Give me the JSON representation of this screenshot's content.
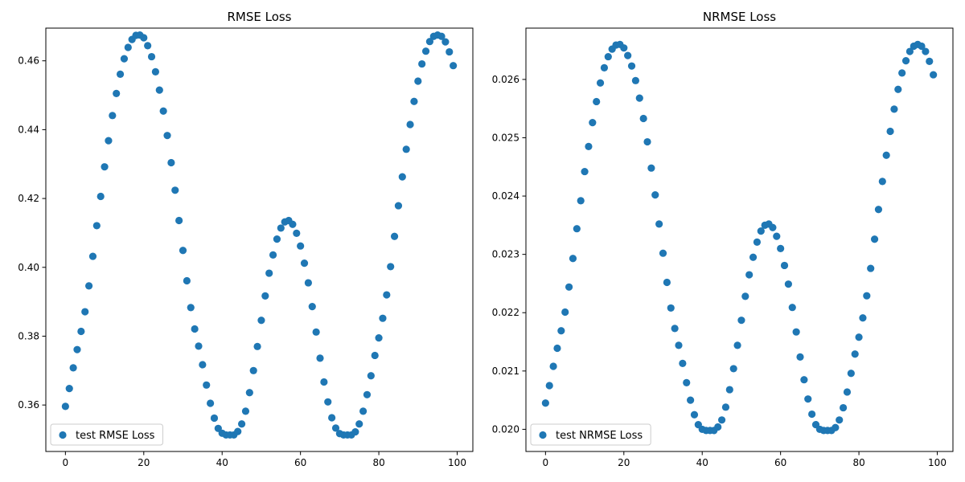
{
  "chart_data": [
    {
      "type": "scatter",
      "title": "RMSE Loss",
      "xlabel": "",
      "ylabel": "",
      "xlim": [
        -5,
        104
      ],
      "ylim": [
        0.3465,
        0.4695
      ],
      "xticks": [
        0,
        20,
        40,
        60,
        80,
        100
      ],
      "xtick_labels": [
        "0",
        "20",
        "40",
        "60",
        "80",
        "100"
      ],
      "yticks": [
        0.36,
        0.38,
        0.4,
        0.42,
        0.44,
        0.46
      ],
      "ytick_labels": [
        "0.36",
        "0.38",
        "0.40",
        "0.42",
        "0.44",
        "0.46"
      ],
      "grid": false,
      "legend_position": "lower-left",
      "color": "#1f77b4",
      "series": [
        {
          "name": "test RMSE Loss",
          "x": [
            0,
            1,
            2,
            3,
            4,
            5,
            6,
            7,
            8,
            9,
            10,
            11,
            12,
            13,
            14,
            15,
            16,
            17,
            18,
            19,
            20,
            21,
            22,
            23,
            24,
            25,
            26,
            27,
            28,
            29,
            30,
            31,
            32,
            33,
            34,
            35,
            36,
            37,
            38,
            39,
            40,
            41,
            42,
            43,
            44,
            45,
            46,
            47,
            48,
            49,
            50,
            51,
            52,
            53,
            54,
            55,
            56,
            57,
            58,
            59,
            60,
            61,
            62,
            63,
            64,
            65,
            66,
            67,
            68,
            69,
            70,
            71,
            72,
            73,
            74,
            75,
            76,
            77,
            78,
            79,
            80,
            81,
            82,
            83,
            84,
            85,
            86,
            87,
            88,
            89,
            90,
            91,
            92,
            93,
            94,
            95,
            96,
            97,
            98,
            99
          ],
          "values": [
            0.3596,
            0.3648,
            0.3708,
            0.3761,
            0.3814,
            0.3871,
            0.3946,
            0.4032,
            0.4121,
            0.4206,
            0.4292,
            0.4368,
            0.4441,
            0.4505,
            0.4561,
            0.4606,
            0.4639,
            0.4662,
            0.4674,
            0.4675,
            0.4667,
            0.4644,
            0.4612,
            0.4568,
            0.4515,
            0.4454,
            0.4383,
            0.4304,
            0.4224,
            0.4136,
            0.4049,
            0.3961,
            0.3883,
            0.3821,
            0.3771,
            0.3717,
            0.3658,
            0.3605,
            0.3562,
            0.3532,
            0.3518,
            0.3513,
            0.3513,
            0.3513,
            0.3523,
            0.3545,
            0.3582,
            0.3636,
            0.37,
            0.377,
            0.3846,
            0.3917,
            0.3983,
            0.4036,
            0.4082,
            0.4114,
            0.4132,
            0.4136,
            0.4125,
            0.4099,
            0.4062,
            0.4012,
            0.3955,
            0.3886,
            0.3812,
            0.3736,
            0.3667,
            0.3609,
            0.3563,
            0.3533,
            0.3517,
            0.3513,
            0.3513,
            0.3513,
            0.3522,
            0.3545,
            0.3582,
            0.363,
            0.3685,
            0.3744,
            0.3795,
            0.3852,
            0.392,
            0.4002,
            0.409,
            0.4179,
            0.4263,
            0.4343,
            0.4415,
            0.4482,
            0.4541,
            0.4591,
            0.4628,
            0.4656,
            0.4671,
            0.4675,
            0.4671,
            0.4655,
            0.4626,
            0.4586
          ]
        }
      ]
    },
    {
      "type": "scatter",
      "title": "NRMSE Loss",
      "xlabel": "",
      "ylabel": "",
      "xlim": [
        -5,
        104
      ],
      "ylim": [
        0.01962,
        0.02688
      ],
      "xticks": [
        0,
        20,
        40,
        60,
        80,
        100
      ],
      "xtick_labels": [
        "0",
        "20",
        "40",
        "60",
        "80",
        "100"
      ],
      "yticks": [
        0.02,
        0.021,
        0.022,
        0.023,
        0.024,
        0.025,
        0.026
      ],
      "ytick_labels": [
        "0.020",
        "0.021",
        "0.022",
        "0.023",
        "0.024",
        "0.025",
        "0.026"
      ],
      "grid": false,
      "legend_position": "lower-left",
      "color": "#1f77b4",
      "series": [
        {
          "name": "test NRMSE Loss",
          "x": [
            0,
            1,
            2,
            3,
            4,
            5,
            6,
            7,
            8,
            9,
            10,
            11,
            12,
            13,
            14,
            15,
            16,
            17,
            18,
            19,
            20,
            21,
            22,
            23,
            24,
            25,
            26,
            27,
            28,
            29,
            30,
            31,
            32,
            33,
            34,
            35,
            36,
            37,
            38,
            39,
            40,
            41,
            42,
            43,
            44,
            45,
            46,
            47,
            48,
            49,
            50,
            51,
            52,
            53,
            54,
            55,
            56,
            57,
            58,
            59,
            60,
            61,
            62,
            63,
            64,
            65,
            66,
            67,
            68,
            69,
            70,
            71,
            72,
            73,
            74,
            75,
            76,
            77,
            78,
            79,
            80,
            81,
            82,
            83,
            84,
            85,
            86,
            87,
            88,
            89,
            90,
            91,
            92,
            93,
            94,
            95,
            96,
            97,
            98,
            99
          ],
          "values": [
            0.02045,
            0.02075,
            0.02108,
            0.02139,
            0.02169,
            0.02201,
            0.02244,
            0.02293,
            0.02344,
            0.02392,
            0.02442,
            0.02485,
            0.02526,
            0.02562,
            0.02594,
            0.0262,
            0.02639,
            0.02652,
            0.02659,
            0.0266,
            0.02654,
            0.02641,
            0.02623,
            0.02598,
            0.02568,
            0.02533,
            0.02493,
            0.02448,
            0.02402,
            0.02352,
            0.02302,
            0.02252,
            0.02208,
            0.02173,
            0.02144,
            0.02113,
            0.0208,
            0.0205,
            0.02025,
            0.02008,
            0.02,
            0.01998,
            0.01998,
            0.01998,
            0.02004,
            0.02016,
            0.02038,
            0.02068,
            0.02104,
            0.02144,
            0.02187,
            0.02228,
            0.02265,
            0.02295,
            0.02321,
            0.0234,
            0.0235,
            0.02352,
            0.02346,
            0.02331,
            0.0231,
            0.02281,
            0.02249,
            0.02209,
            0.02167,
            0.02124,
            0.02085,
            0.02052,
            0.02026,
            0.02008,
            0.02,
            0.01998,
            0.01998,
            0.01998,
            0.02003,
            0.02016,
            0.02037,
            0.02064,
            0.02096,
            0.02129,
            0.02158,
            0.02191,
            0.02229,
            0.02276,
            0.02326,
            0.02377,
            0.02425,
            0.0247,
            0.02511,
            0.02549,
            0.02583,
            0.02611,
            0.02632,
            0.02648,
            0.02657,
            0.0266,
            0.02657,
            0.02648,
            0.02631,
            0.02608
          ]
        }
      ]
    }
  ]
}
